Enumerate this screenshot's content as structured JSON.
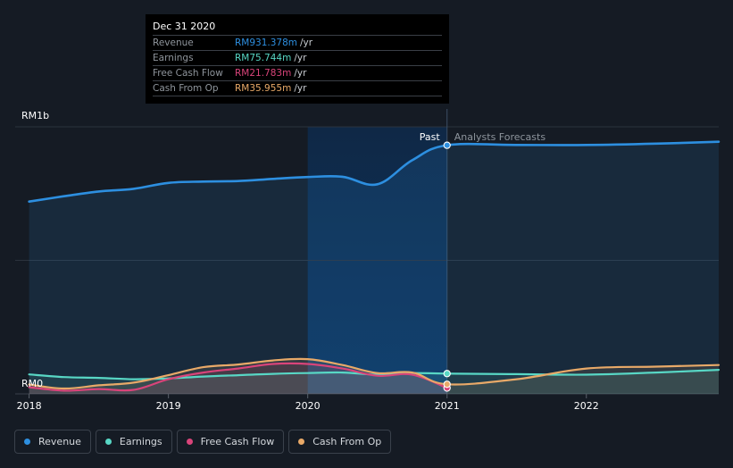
{
  "chart_data": {
    "type": "area",
    "y_axis": {
      "ticks": [
        "RM1b",
        "RM0"
      ],
      "ylim": [
        0,
        1000
      ]
    },
    "x_axis": {
      "ticks": [
        "2018",
        "2019",
        "2020",
        "2021",
        "2022"
      ],
      "xlim": [
        2017.9,
        2022.95
      ]
    },
    "divider": {
      "x": 2021.0,
      "past_label": "Past",
      "forecast_label": "Analysts Forecasts"
    },
    "highlight_start": 2020.0,
    "tooltip": {
      "date": "Dec 31 2020",
      "rows": [
        {
          "label": "Revenue",
          "value": "RM931.378m",
          "unit": "/yr"
        },
        {
          "label": "Earnings",
          "value": "RM75.744m",
          "unit": "/yr"
        },
        {
          "label": "Free Cash Flow",
          "value": "RM21.783m",
          "unit": "/yr"
        },
        {
          "label": "Cash From Op",
          "value": "RM35.955m",
          "unit": "/yr"
        }
      ]
    },
    "series": [
      {
        "name": "Revenue",
        "color": "#2d8fe0",
        "fill": true,
        "points": [
          [
            2018.0,
            720
          ],
          [
            2018.25,
            740
          ],
          [
            2018.5,
            758
          ],
          [
            2018.75,
            768
          ],
          [
            2019.0,
            790
          ],
          [
            2019.25,
            795
          ],
          [
            2019.5,
            797
          ],
          [
            2019.75,
            805
          ],
          [
            2020.0,
            812
          ],
          [
            2020.25,
            813
          ],
          [
            2020.5,
            785
          ],
          [
            2020.75,
            875
          ],
          [
            2021.0,
            931
          ],
          [
            2021.5,
            932
          ],
          [
            2022.0,
            932
          ],
          [
            2022.5,
            937
          ],
          [
            2022.95,
            944
          ]
        ]
      },
      {
        "name": "Earnings",
        "color": "#58d7c5",
        "fill": true,
        "points": [
          [
            2018.0,
            73
          ],
          [
            2018.25,
            63
          ],
          [
            2018.5,
            60
          ],
          [
            2018.75,
            55
          ],
          [
            2019.0,
            58
          ],
          [
            2019.25,
            65
          ],
          [
            2019.5,
            70
          ],
          [
            2019.75,
            75
          ],
          [
            2020.0,
            78
          ],
          [
            2020.25,
            80
          ],
          [
            2020.5,
            72
          ],
          [
            2020.75,
            78
          ],
          [
            2021.0,
            76
          ],
          [
            2021.5,
            74
          ],
          [
            2022.0,
            72
          ],
          [
            2022.5,
            80
          ],
          [
            2022.95,
            90
          ]
        ]
      },
      {
        "name": "Free Cash Flow",
        "color": "#d9447a",
        "fill": true,
        "points": [
          [
            2018.0,
            25
          ],
          [
            2018.25,
            12
          ],
          [
            2018.5,
            18
          ],
          [
            2018.75,
            15
          ],
          [
            2019.0,
            55
          ],
          [
            2019.25,
            80
          ],
          [
            2019.5,
            95
          ],
          [
            2019.75,
            112
          ],
          [
            2020.0,
            112
          ],
          [
            2020.25,
            95
          ],
          [
            2020.5,
            68
          ],
          [
            2020.75,
            72
          ],
          [
            2021.0,
            22
          ]
        ]
      },
      {
        "name": "Cash From Op",
        "color": "#e8a968",
        "fill": true,
        "points": [
          [
            2018.0,
            35
          ],
          [
            2018.25,
            20
          ],
          [
            2018.5,
            32
          ],
          [
            2018.75,
            42
          ],
          [
            2019.0,
            70
          ],
          [
            2019.25,
            100
          ],
          [
            2019.5,
            110
          ],
          [
            2019.75,
            125
          ],
          [
            2020.0,
            130
          ],
          [
            2020.25,
            108
          ],
          [
            2020.5,
            78
          ],
          [
            2020.75,
            80
          ],
          [
            2021.0,
            36
          ],
          [
            2021.5,
            55
          ],
          [
            2022.0,
            95
          ],
          [
            2022.5,
            102
          ],
          [
            2022.95,
            108
          ]
        ]
      }
    ],
    "legend_position": "bottom-left"
  }
}
